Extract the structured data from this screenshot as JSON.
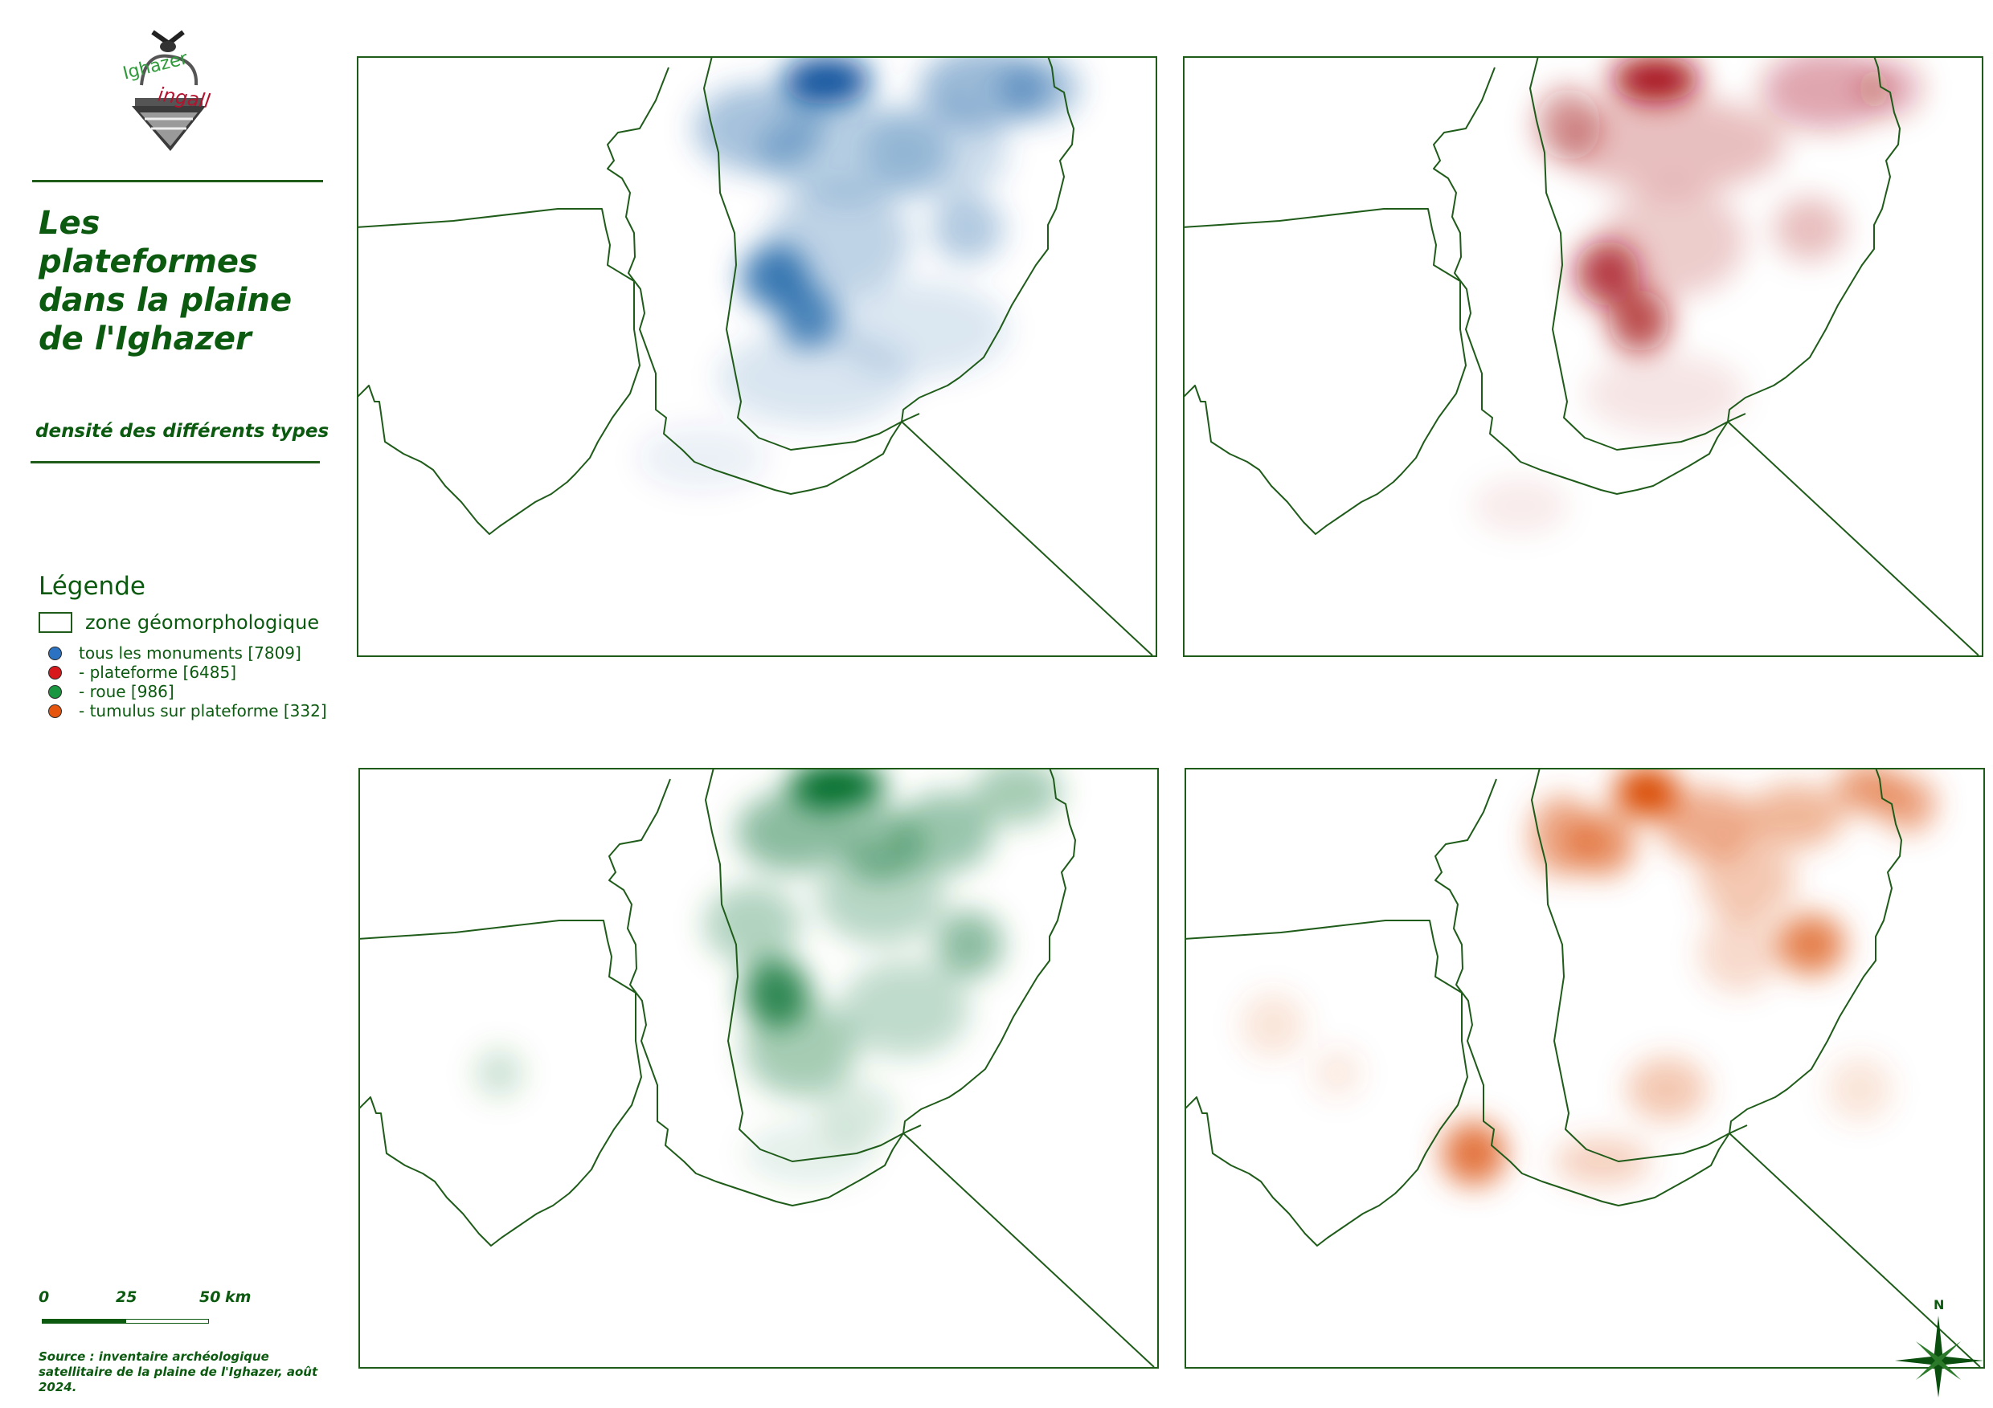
{
  "title": "Les plateformes dans la plaine de l'Ighazer",
  "subtitle": "densité des différents types",
  "logo": {
    "text_top": "Ighazer",
    "text_bottom": "ingall",
    "colors": {
      "top": "#2e9a3a",
      "bottom": "#b3122e"
    }
  },
  "legend": {
    "title": "Légende",
    "zone_label": "zone géomorphologique",
    "items": [
      {
        "label": "tous les monuments [7809]",
        "color": "#2b73c2"
      },
      {
        "label": "- plateforme [6485]",
        "color": "#d7191c"
      },
      {
        "label": "- roue [986]",
        "color": "#1a9641"
      },
      {
        "label": "- tumulus sur plateforme [332]",
        "color": "#e6550d"
      }
    ]
  },
  "scale": {
    "ticks": [
      "0",
      "25",
      "50"
    ],
    "unit": "km"
  },
  "source": "Source : inventaire archéologique satellitaire de la plaine de l'Ighazer, août 2024.",
  "north_label": "N",
  "colors": {
    "boundary": "#1f5c1a",
    "text": "#0b5a10"
  },
  "maps": [
    {
      "layer": "tous les monuments",
      "color": "#08519c"
    },
    {
      "layer": "plateforme",
      "color": "#a50f15"
    },
    {
      "layer": "roue",
      "color": "#006d2c"
    },
    {
      "layer": "tumulus sur plateforme",
      "color": "#d94801"
    }
  ]
}
